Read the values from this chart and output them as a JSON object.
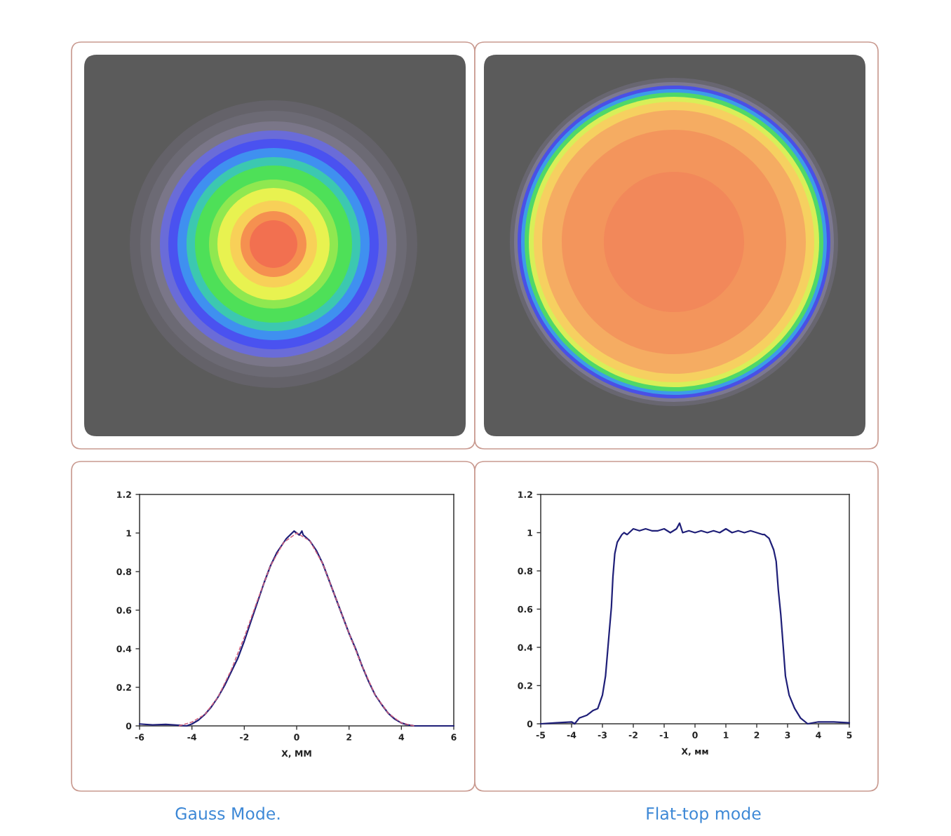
{
  "chart_data": [
    {
      "type": "line",
      "title": "Gauss Mode.",
      "xlabel": "X, MM",
      "xlim": [
        -6,
        6
      ],
      "ylim": [
        0,
        1.2
      ],
      "xticks": [
        -6,
        -4,
        -2,
        0,
        2,
        4,
        6
      ],
      "yticks": [
        0,
        0.2,
        0.4,
        0.6,
        0.8,
        1,
        1.2
      ],
      "series": [
        {
          "color": "#1f1f78",
          "x": [
            -6,
            -5.5,
            -5,
            -4.5,
            -4.2,
            -4,
            -3.75,
            -3.5,
            -3.25,
            -3,
            -2.75,
            -2.5,
            -2.25,
            -2,
            -1.75,
            -1.5,
            -1.25,
            -1,
            -0.75,
            -0.5,
            -0.4,
            -0.25,
            -0.1,
            0,
            0.1,
            0.2,
            0.25,
            0.5,
            0.75,
            1,
            1.25,
            1.5,
            1.75,
            2,
            2.25,
            2.5,
            2.75,
            3,
            3.25,
            3.5,
            3.75,
            4,
            4.25,
            4.5,
            5,
            5.5,
            6
          ],
          "values": [
            0.01,
            0.005,
            0.008,
            0.003,
            0.0,
            0.01,
            0.03,
            0.06,
            0.1,
            0.15,
            0.21,
            0.28,
            0.35,
            0.44,
            0.54,
            0.64,
            0.74,
            0.83,
            0.9,
            0.95,
            0.97,
            0.99,
            1.01,
            1.0,
            0.99,
            1.01,
            0.99,
            0.96,
            0.91,
            0.84,
            0.75,
            0.66,
            0.57,
            0.48,
            0.4,
            0.31,
            0.23,
            0.16,
            0.11,
            0.065,
            0.035,
            0.015,
            0.005,
            0.0,
            0.0,
            0.0,
            0.0
          ]
        },
        {
          "color": "#d0607e",
          "line_style": "dashed",
          "x": [
            -4.5,
            -4,
            -3.5,
            -3,
            -2.5,
            -2,
            -1.5,
            -1,
            -0.5,
            0,
            0.5,
            1,
            1.5,
            2,
            2.5,
            3,
            3.5,
            4,
            4.5
          ],
          "values": [
            0.0,
            0.02,
            0.06,
            0.15,
            0.29,
            0.46,
            0.65,
            0.83,
            0.95,
            1.0,
            0.96,
            0.84,
            0.66,
            0.48,
            0.31,
            0.16,
            0.065,
            0.015,
            0.0
          ]
        }
      ]
    },
    {
      "type": "line",
      "title": "Flat-top mode",
      "xlabel": "X, мм",
      "xlim": [
        -5,
        5
      ],
      "ylim": [
        0,
        1.2
      ],
      "xticks": [
        -5,
        -4,
        -3,
        -2,
        -1,
        0,
        1,
        2,
        3,
        4,
        5
      ],
      "yticks": [
        0,
        0.2,
        0.4,
        0.6,
        0.8,
        1,
        1.2
      ],
      "series": [
        {
          "color": "#1f1f78",
          "x": [
            -5,
            -4.5,
            -4,
            -3.9,
            -3.75,
            -3.5,
            -3.3,
            -3.15,
            -3,
            -2.95,
            -2.9,
            -2.79,
            -2.71,
            -2.66,
            -2.6,
            -2.52,
            -2.37,
            -2.3,
            -2.2,
            -2,
            -1.8,
            -1.6,
            -1.4,
            -1.2,
            -1,
            -0.8,
            -0.6,
            -0.5,
            -0.4,
            -0.2,
            0,
            0.2,
            0.4,
            0.6,
            0.8,
            1,
            1.2,
            1.4,
            1.6,
            1.8,
            2,
            2.2,
            2.25,
            2.4,
            2.55,
            2.63,
            2.7,
            2.78,
            2.86,
            2.93,
            3.05,
            3.23,
            3.42,
            3.65,
            4,
            4.5,
            5
          ],
          "values": [
            0.0,
            0.005,
            0.01,
            0.0,
            0.03,
            0.045,
            0.07,
            0.08,
            0.15,
            0.2,
            0.25,
            0.46,
            0.61,
            0.77,
            0.89,
            0.95,
            0.99,
            1.0,
            0.99,
            1.02,
            1.01,
            1.02,
            1.01,
            1.01,
            1.02,
            1.0,
            1.02,
            1.05,
            1.0,
            1.01,
            1.0,
            1.01,
            1.0,
            1.01,
            1.0,
            1.02,
            1.0,
            1.01,
            1.0,
            1.01,
            1.0,
            0.99,
            0.99,
            0.97,
            0.91,
            0.85,
            0.7,
            0.57,
            0.4,
            0.25,
            0.15,
            0.08,
            0.03,
            0.0,
            0.01,
            0.01,
            0.005
          ]
        }
      ]
    }
  ]
}
